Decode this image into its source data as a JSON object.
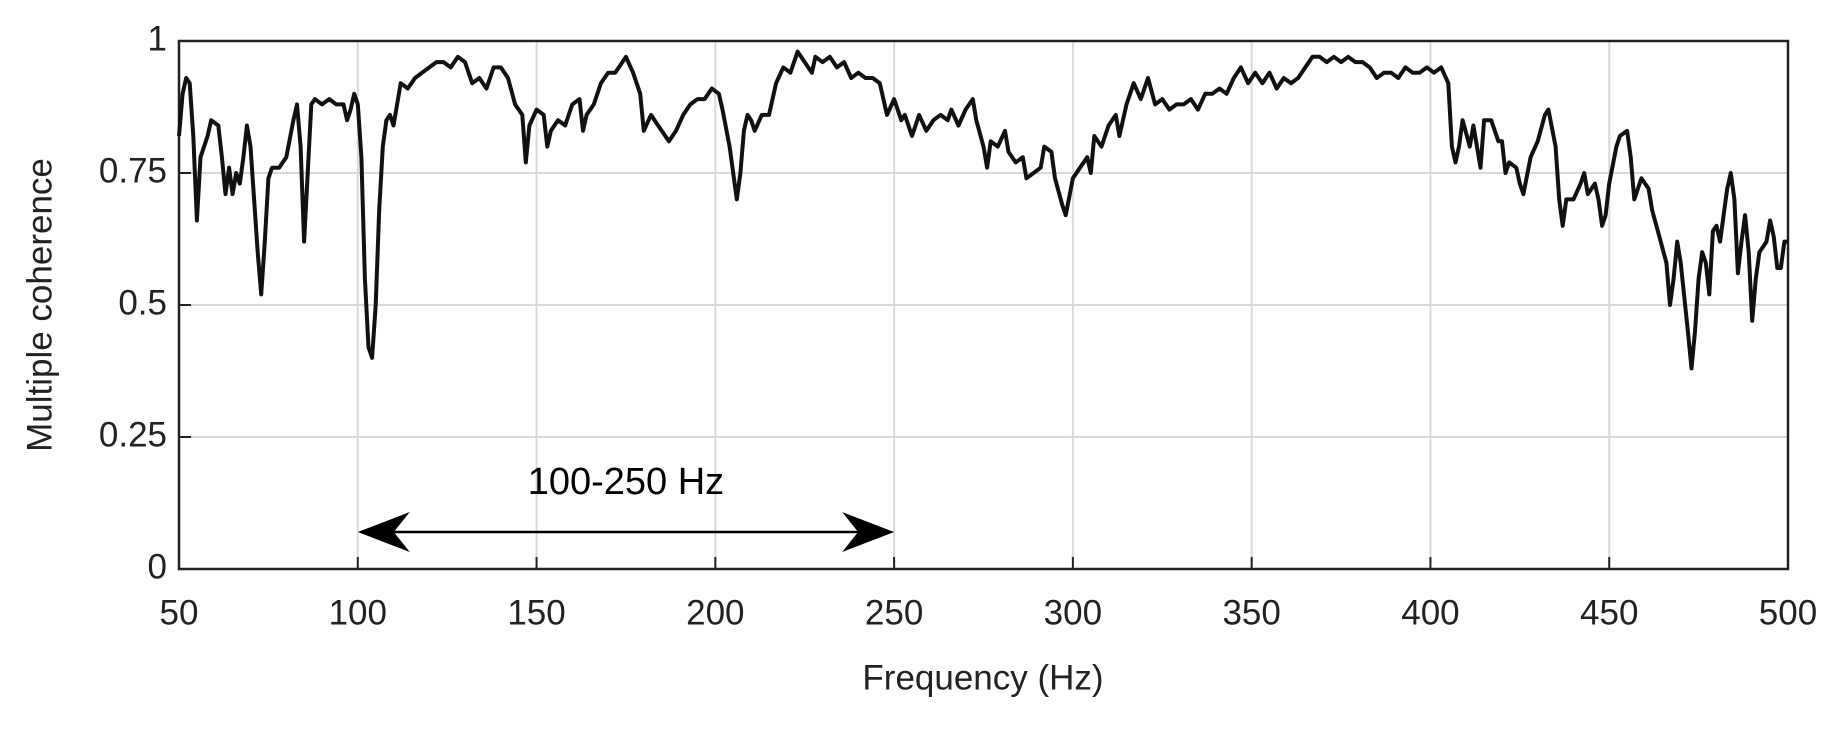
{
  "chart_data": {
    "type": "line",
    "xlabel": "Frequency (Hz)",
    "ylabel": "Multiple coherence",
    "xlim": [
      50,
      500
    ],
    "xticks": [
      50,
      100,
      150,
      200,
      250,
      300,
      350,
      400,
      450,
      500
    ],
    "ylim": [
      0,
      1
    ],
    "yticks": [
      0,
      0.25,
      0.5,
      0.75,
      1
    ],
    "grid": true,
    "color": "#111111",
    "annotation": {
      "text": "100-250 Hz",
      "x_start": 100,
      "x_end": 250,
      "y": 0.07
    },
    "x": [
      50,
      51,
      52,
      53,
      54,
      55,
      56,
      58,
      59,
      61,
      62,
      63,
      64,
      65,
      66,
      67,
      68,
      69,
      70,
      71,
      72,
      73,
      74,
      75,
      76,
      78,
      80,
      82,
      83,
      84,
      85,
      86,
      87,
      88,
      90,
      92,
      94,
      96,
      97,
      98,
      99,
      100,
      101,
      102,
      103,
      104,
      105,
      106,
      107,
      108,
      109,
      110,
      111,
      112,
      114,
      116,
      118,
      120,
      122,
      124,
      126,
      128,
      130,
      132,
      134,
      136,
      138,
      140,
      142,
      144,
      146,
      147,
      148,
      150,
      152,
      153,
      154,
      156,
      158,
      159,
      160,
      162,
      163,
      164,
      166,
      168,
      170,
      172,
      174,
      175,
      177,
      179,
      180,
      182,
      184,
      186,
      187,
      189,
      191,
      193,
      195,
      197,
      199,
      201,
      202,
      204,
      205,
      206,
      207,
      208,
      209,
      210,
      211,
      213,
      215,
      217,
      219,
      221,
      223,
      225,
      227,
      228,
      230,
      232,
      234,
      236,
      238,
      240,
      242,
      244,
      246,
      248,
      250,
      252,
      253,
      255,
      257,
      259,
      261,
      263,
      265,
      266,
      268,
      270,
      272,
      273,
      275,
      276,
      277,
      279,
      281,
      282,
      284,
      286,
      287,
      289,
      291,
      292,
      294,
      295,
      297,
      298,
      300,
      302,
      304,
      305,
      306,
      308,
      310,
      312,
      313,
      315,
      317,
      319,
      321,
      323,
      325,
      327,
      329,
      331,
      333,
      335,
      337,
      339,
      341,
      343,
      345,
      347,
      349,
      351,
      353,
      355,
      357,
      359,
      361,
      363,
      365,
      367,
      369,
      371,
      373,
      375,
      377,
      379,
      381,
      383,
      385,
      387,
      389,
      391,
      393,
      395,
      397,
      399,
      401,
      403,
      405,
      406,
      407,
      408,
      409,
      411,
      412,
      414,
      415,
      417,
      419,
      420,
      421,
      422,
      424,
      425,
      426,
      428,
      430,
      432,
      433,
      435,
      436,
      437,
      438,
      440,
      442,
      443,
      444,
      446,
      447,
      448,
      449,
      450,
      452,
      453,
      455,
      456,
      457,
      459,
      461,
      462,
      464,
      466,
      467,
      468,
      469,
      470,
      472,
      473,
      474,
      475,
      476,
      477,
      478,
      479,
      480,
      481,
      482,
      483,
      484,
      485,
      486,
      487,
      488,
      489,
      490,
      491,
      492,
      494,
      495,
      496,
      497,
      498,
      499,
      500
    ],
    "values": [
      0.82,
      0.9,
      0.93,
      0.92,
      0.82,
      0.66,
      0.78,
      0.82,
      0.85,
      0.84,
      0.78,
      0.71,
      0.76,
      0.71,
      0.75,
      0.73,
      0.78,
      0.84,
      0.8,
      0.7,
      0.6,
      0.52,
      0.62,
      0.74,
      0.76,
      0.76,
      0.78,
      0.85,
      0.88,
      0.8,
      0.62,
      0.75,
      0.88,
      0.89,
      0.88,
      0.89,
      0.88,
      0.88,
      0.85,
      0.87,
      0.9,
      0.88,
      0.78,
      0.55,
      0.42,
      0.4,
      0.5,
      0.68,
      0.8,
      0.85,
      0.86,
      0.84,
      0.88,
      0.92,
      0.91,
      0.93,
      0.94,
      0.95,
      0.96,
      0.96,
      0.95,
      0.97,
      0.96,
      0.92,
      0.93,
      0.91,
      0.95,
      0.95,
      0.93,
      0.88,
      0.86,
      0.77,
      0.84,
      0.87,
      0.86,
      0.8,
      0.83,
      0.85,
      0.84,
      0.86,
      0.88,
      0.89,
      0.83,
      0.86,
      0.88,
      0.92,
      0.94,
      0.94,
      0.96,
      0.97,
      0.94,
      0.9,
      0.83,
      0.86,
      0.84,
      0.82,
      0.81,
      0.83,
      0.86,
      0.88,
      0.89,
      0.89,
      0.91,
      0.9,
      0.87,
      0.8,
      0.75,
      0.7,
      0.75,
      0.83,
      0.86,
      0.85,
      0.83,
      0.86,
      0.86,
      0.92,
      0.95,
      0.94,
      0.98,
      0.96,
      0.94,
      0.97,
      0.96,
      0.97,
      0.95,
      0.96,
      0.93,
      0.94,
      0.93,
      0.93,
      0.92,
      0.86,
      0.89,
      0.85,
      0.86,
      0.82,
      0.86,
      0.83,
      0.85,
      0.86,
      0.85,
      0.87,
      0.84,
      0.87,
      0.89,
      0.85,
      0.8,
      0.76,
      0.81,
      0.8,
      0.83,
      0.79,
      0.77,
      0.78,
      0.74,
      0.75,
      0.76,
      0.8,
      0.79,
      0.74,
      0.69,
      0.67,
      0.74,
      0.76,
      0.78,
      0.75,
      0.82,
      0.8,
      0.84,
      0.86,
      0.82,
      0.88,
      0.92,
      0.89,
      0.93,
      0.88,
      0.89,
      0.87,
      0.88,
      0.88,
      0.89,
      0.87,
      0.9,
      0.9,
      0.91,
      0.9,
      0.93,
      0.95,
      0.92,
      0.94,
      0.92,
      0.94,
      0.91,
      0.93,
      0.92,
      0.93,
      0.95,
      0.97,
      0.97,
      0.96,
      0.97,
      0.96,
      0.97,
      0.96,
      0.96,
      0.95,
      0.93,
      0.94,
      0.94,
      0.93,
      0.95,
      0.94,
      0.94,
      0.95,
      0.94,
      0.95,
      0.92,
      0.8,
      0.77,
      0.8,
      0.85,
      0.8,
      0.84,
      0.76,
      0.85,
      0.85,
      0.81,
      0.81,
      0.75,
      0.77,
      0.76,
      0.73,
      0.71,
      0.78,
      0.81,
      0.86,
      0.87,
      0.8,
      0.7,
      0.65,
      0.7,
      0.7,
      0.73,
      0.75,
      0.71,
      0.73,
      0.7,
      0.65,
      0.67,
      0.73,
      0.8,
      0.82,
      0.83,
      0.78,
      0.7,
      0.74,
      0.72,
      0.68,
      0.63,
      0.58,
      0.5,
      0.55,
      0.62,
      0.58,
      0.45,
      0.38,
      0.45,
      0.55,
      0.6,
      0.58,
      0.52,
      0.64,
      0.65,
      0.62,
      0.67,
      0.72,
      0.75,
      0.7,
      0.56,
      0.62,
      0.67,
      0.6,
      0.47,
      0.55,
      0.6,
      0.62,
      0.66,
      0.63,
      0.57,
      0.57,
      0.62,
      0.62
    ]
  }
}
